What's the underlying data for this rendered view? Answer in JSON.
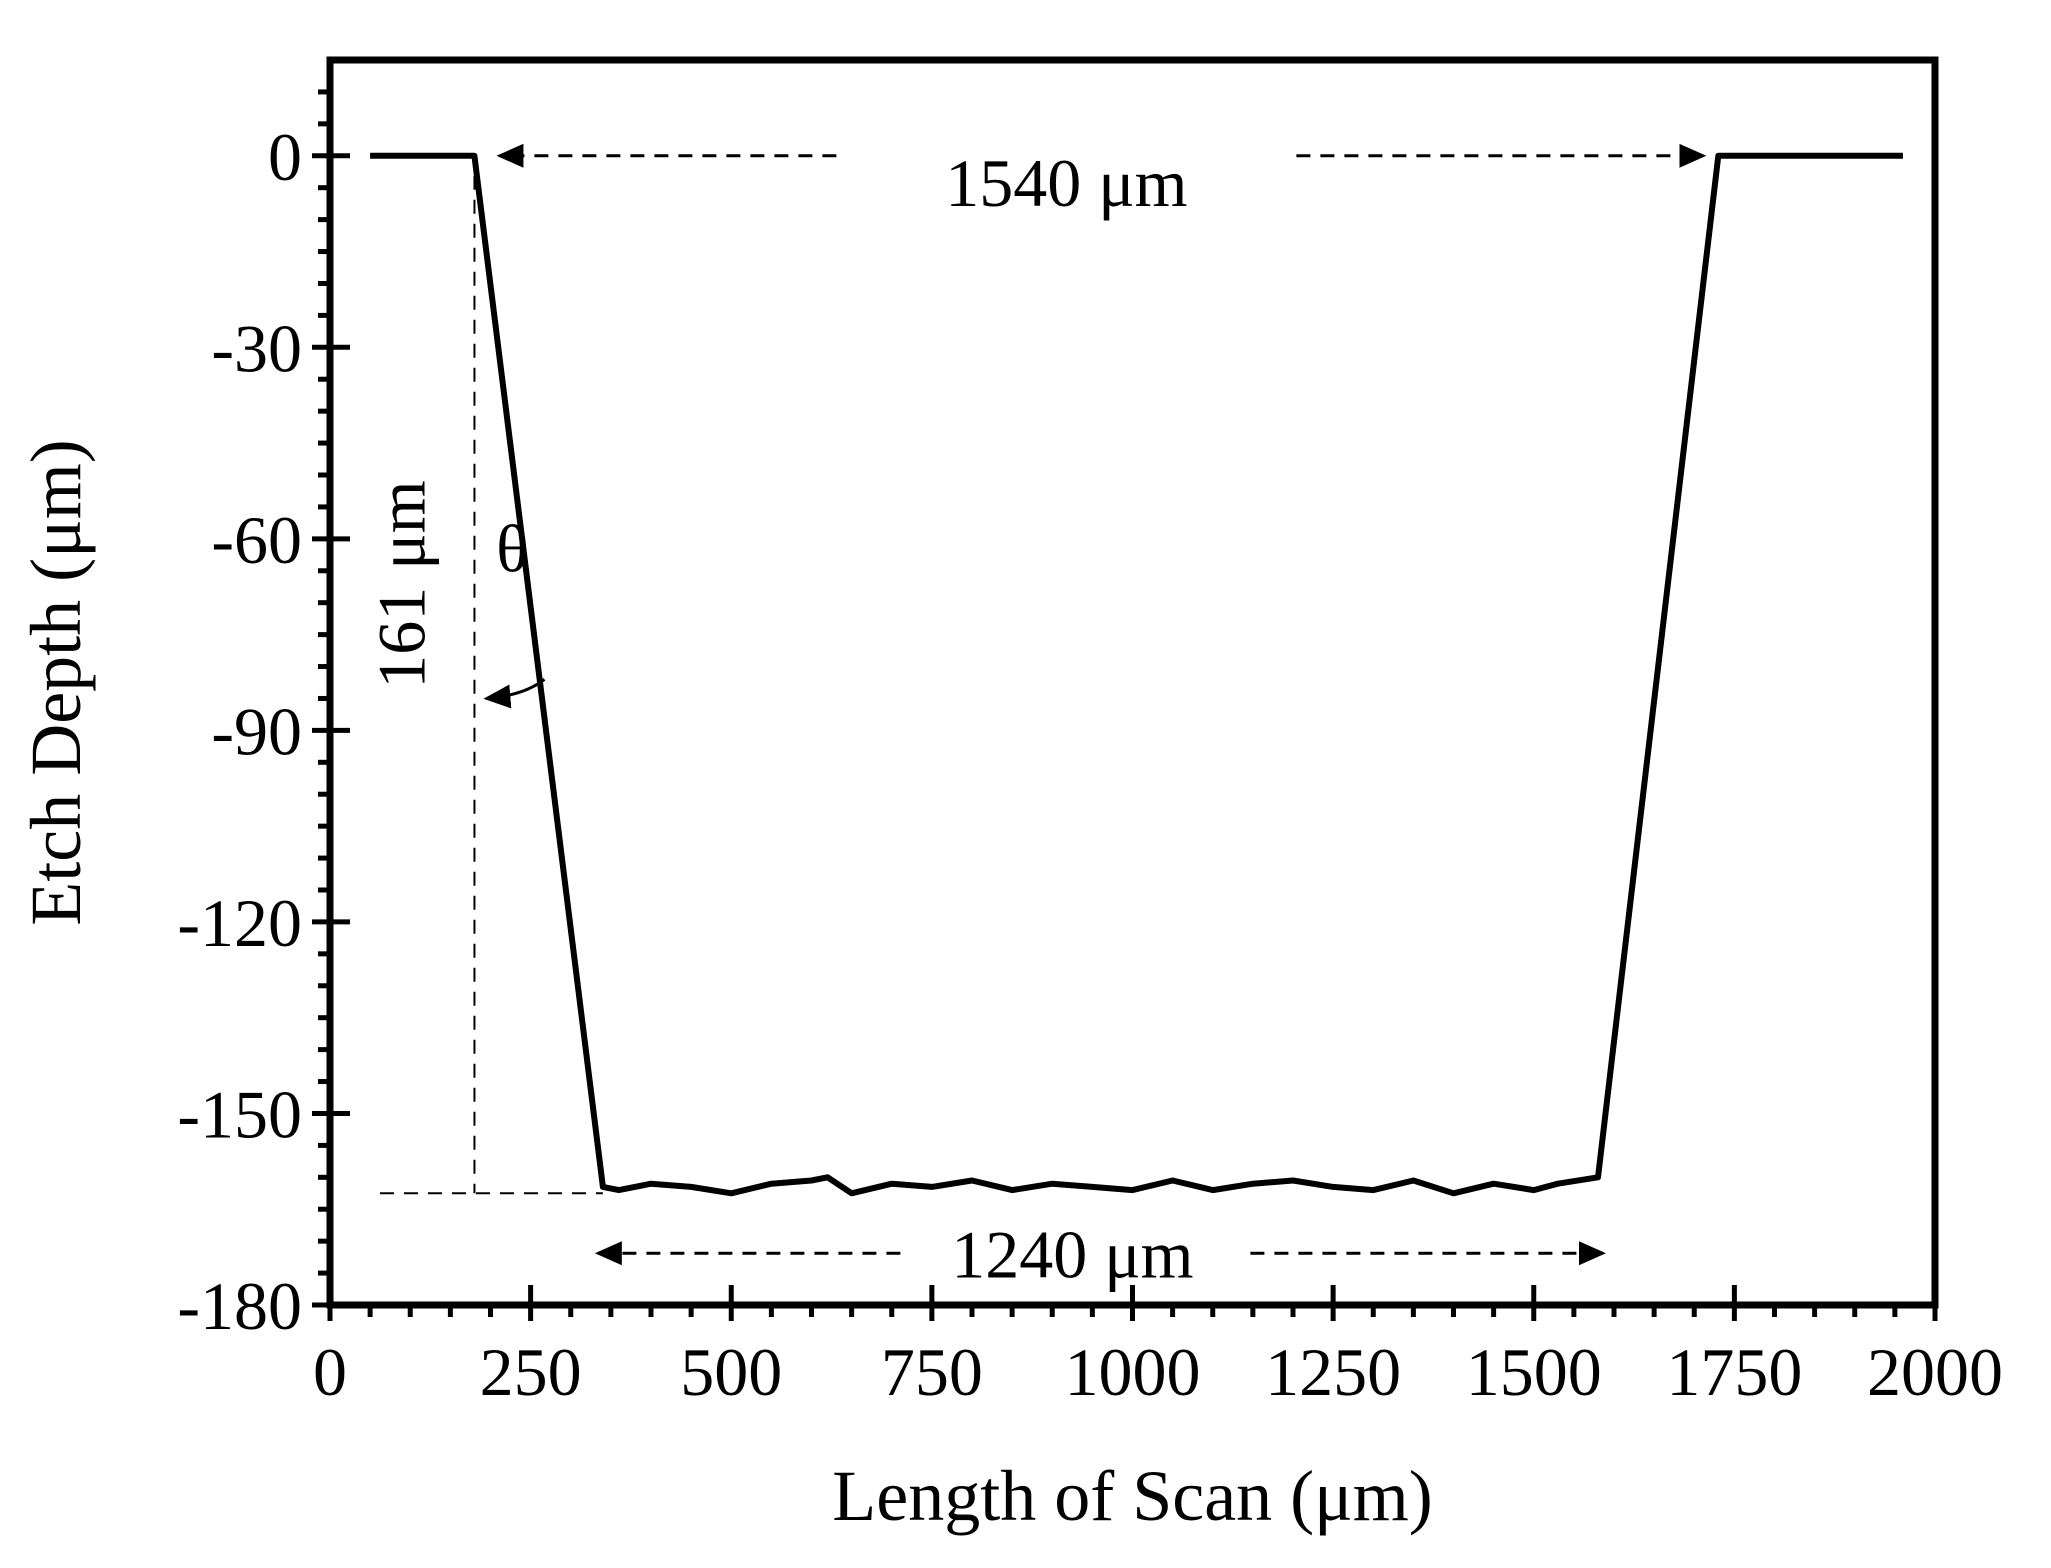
{
  "chart_data": {
    "type": "line",
    "xlabel": "Length of Scan (μm)",
    "ylabel": "Etch Depth (μm)",
    "xlim": [
      0,
      2000
    ],
    "ylim": [
      -180,
      15
    ],
    "x_ticks": [
      0,
      250,
      500,
      750,
      1000,
      1250,
      1500,
      1750,
      2000
    ],
    "y_ticks": [
      0,
      -30,
      -60,
      -90,
      -120,
      -150,
      -180
    ],
    "grid": false,
    "legend": "none",
    "series": [
      {
        "line_color": "#000000",
        "x": [
          50,
          180,
          340,
          360,
          400,
          450,
          500,
          550,
          600,
          620,
          650,
          700,
          750,
          800,
          850,
          900,
          950,
          1000,
          1050,
          1100,
          1150,
          1200,
          1250,
          1300,
          1350,
          1400,
          1450,
          1500,
          1530,
          1580,
          1730,
          1960
        ],
        "y": [
          0,
          0,
          -161.5,
          -162,
          -161,
          -161.5,
          -162.5,
          -161,
          -160.5,
          -160,
          -162.5,
          -161,
          -161.5,
          -160.5,
          -162,
          -161,
          -161.5,
          -162,
          -160.5,
          -162,
          -161,
          -160.5,
          -161.5,
          -162,
          -160.5,
          -162.5,
          -161,
          -162,
          -161,
          -160,
          0,
          0
        ]
      }
    ],
    "annotations": {
      "top_width_label": "1540 μm",
      "bottom_width_label": "1240 μm",
      "depth_label": "161 μm",
      "angle_label": "θ"
    }
  }
}
